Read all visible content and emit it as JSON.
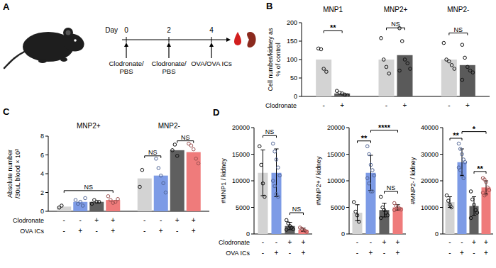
{
  "diagram": {
    "panel": "A",
    "day_label": "Day",
    "days": [
      0,
      2,
      4
    ],
    "events": [
      {
        "day": 0,
        "label": [
          "Clodronate/",
          "PBS"
        ]
      },
      {
        "day": 2,
        "label": [
          "Clodronate/",
          "PBS"
        ]
      },
      {
        "day": 4,
        "label": [
          "OVA/OVA ICs"
        ]
      }
    ]
  },
  "chart_data": [
    {
      "type": "bar",
      "panel": "B",
      "y_label": [
        "Cell number/kidney as",
        "% of control"
      ],
      "categories": [
        "MNP1",
        "MNP2+",
        "MNP2-"
      ],
      "ylim": [
        0,
        200
      ],
      "yticks": [
        0,
        50,
        100,
        150,
        200
      ],
      "series": [
        {
          "color": "#d3d3d3",
          "values": [
            100,
            100,
            100
          ],
          "points": [
            [
              130,
              128,
              75,
              67
            ],
            [
              158,
              100,
              80,
              62
            ],
            [
              145,
              100,
              95,
              85,
              75
            ]
          ]
        },
        {
          "color": "#5a5a5a",
          "values": [
            8,
            112,
            85
          ],
          "points": [
            [
              15,
              10,
              8,
              5,
              3
            ],
            [
              185,
              150,
              100,
              90,
              75,
              70
            ],
            [
              140,
              105,
              80,
              70,
              65,
              45
            ]
          ]
        }
      ],
      "rows": [
        {
          "label": "Clodronate",
          "values": [
            "-",
            "+",
            "-",
            "+",
            "-",
            "+"
          ]
        }
      ],
      "annotations": [
        {
          "text": "**",
          "bars": [
            0,
            1
          ],
          "y": 178
        },
        {
          "text": "NS",
          "bars": [
            2,
            3
          ],
          "y": 186
        },
        {
          "text": "NS",
          "bars": [
            4,
            5
          ],
          "y": 172
        }
      ]
    },
    {
      "type": "bar",
      "panel": "C",
      "y_label": [
        "Absolute number",
        "/30uL blood × 10³"
      ],
      "categories": [
        "MNP2+",
        "MNP2-"
      ],
      "ylim": [
        0,
        8
      ],
      "yticks": [
        0,
        2,
        4,
        6,
        8
      ],
      "series": [
        {
          "color": "#d3d3d3",
          "values": [
            0.5,
            3.5
          ],
          "points": [
            [
              0.4,
              0.6
            ],
            [
              2.6,
              4.4
            ]
          ]
        },
        {
          "color": "#7d9be6",
          "values": [
            1.0,
            3.8
          ],
          "points": [
            [
              1.2,
              0.8,
              1.0,
              0.6,
              1.4
            ],
            [
              5.6,
              4.6,
              3.8,
              3.0,
              2.0
            ]
          ]
        },
        {
          "color": "#5f5f5f",
          "values": [
            1.0,
            6.5
          ],
          "points": [
            [
              0.8,
              1.2,
              1.0,
              1.0
            ],
            [
              6.5,
              7.1,
              5.9
            ]
          ]
        },
        {
          "color": "#ef7b7b",
          "values": [
            1.2,
            6.3
          ],
          "points": [
            [
              1.6,
              1.2,
              0.9,
              1.0,
              1.3
            ],
            [
              7.2,
              7.0,
              6.6,
              5.6,
              5.1
            ]
          ]
        }
      ],
      "rows": [
        {
          "label": "Clodronate",
          "values": [
            "-",
            "-",
            "+",
            "+",
            "-",
            "-",
            "+",
            "+"
          ]
        },
        {
          "label": "OVA ICs",
          "values": [
            "-",
            "+",
            "-",
            "+",
            "-",
            "+",
            "-",
            "+"
          ]
        }
      ],
      "annotations": [
        {
          "text": "NS",
          "bars": [
            0,
            3
          ],
          "y": 2.2
        },
        {
          "text": "NS",
          "bars": [
            4,
            5
          ],
          "y": 5.9
        },
        {
          "text": "NS",
          "bars": [
            6,
            7
          ],
          "y": 7.5
        }
      ]
    },
    {
      "type": "bar",
      "panel": "D",
      "y_label": "#MNP1 / kidney",
      "categories": [
        null
      ],
      "ylim": [
        0,
        20000
      ],
      "yticks": [
        0,
        5000,
        10000,
        15000,
        20000
      ],
      "series": [
        {
          "color": "#d3d3d3",
          "values": [
            11500
          ],
          "errors": [
            4300
          ],
          "points": [
            [
              16500,
              13000,
              9500,
              7000
            ]
          ]
        },
        {
          "color": "#7d9be6",
          "values": [
            11500
          ],
          "errors": [
            4500
          ],
          "points": [
            [
              17000,
              15500,
              14000,
              12500,
              11000,
              10000,
              9000,
              7500,
              7000
            ]
          ]
        },
        {
          "color": "#5f5f5f",
          "values": [
            1500
          ],
          "errors": [
            700
          ],
          "points": [
            [
              2600,
              2000,
              1500,
              1200,
              900,
              800
            ]
          ]
        },
        {
          "color": "#ef7b7b",
          "values": [
            800
          ],
          "errors": [
            300
          ],
          "points": [
            [
              1200,
              1000,
              800,
              600,
              400
            ]
          ]
        }
      ],
      "rows": [
        {
          "label": "Clodronate",
          "values": [
            "-",
            "-",
            "+",
            "+"
          ]
        },
        {
          "label": "OVA ICs",
          "values": [
            "-",
            "+",
            "-",
            "+"
          ]
        }
      ],
      "annotations": [
        {
          "text": "NS",
          "bars": [
            0,
            1
          ],
          "y": 18500
        },
        {
          "text": "NS",
          "bars": [
            2,
            3
          ],
          "y": 4000
        }
      ]
    },
    {
      "type": "bar",
      "y_label": "#MNP2+ / kidney",
      "categories": [
        null
      ],
      "ylim": [
        0,
        20000
      ],
      "yticks": [
        0,
        5000,
        10000,
        15000,
        20000
      ],
      "series": [
        {
          "color": "#d3d3d3",
          "values": [
            4000
          ],
          "errors": [
            1500
          ],
          "points": [
            [
              6000,
              4200,
              3500,
              2300
            ]
          ]
        },
        {
          "color": "#7d9be6",
          "values": [
            11500
          ],
          "errors": [
            3300
          ],
          "points": [
            [
              16500,
              15000,
              13000,
              12000,
              11000,
              10500,
              9500,
              8000,
              8000
            ]
          ]
        },
        {
          "color": "#5f5f5f",
          "values": [
            4500
          ],
          "errors": [
            1300
          ],
          "points": [
            [
              7000,
              5000,
              4500,
              4000,
              3500,
              3000
            ]
          ]
        },
        {
          "color": "#ef7b7b",
          "values": [
            5000
          ],
          "errors": [
            500
          ],
          "points": [
            [
              5800,
              5300,
              5000,
              4800,
              4600,
              4500
            ]
          ]
        }
      ],
      "rows": [
        {
          "values": [
            "-",
            "-",
            "+",
            "+"
          ]
        },
        {
          "values": [
            "-",
            "+",
            "-",
            "+"
          ]
        }
      ],
      "annotations": [
        {
          "text": "**",
          "bars": [
            0,
            1
          ],
          "y": 17500
        },
        {
          "text": "****",
          "bars": [
            1,
            3
          ],
          "y": 19500
        },
        {
          "text": "NS",
          "bars": [
            2,
            3
          ],
          "y": 8000
        }
      ]
    },
    {
      "type": "bar",
      "y_label": "#MNP2- / kidney",
      "categories": [
        null
      ],
      "ylim": [
        0,
        40000
      ],
      "yticks": [
        0,
        10000,
        20000,
        30000,
        40000
      ],
      "series": [
        {
          "color": "#d3d3d3",
          "values": [
            12000
          ],
          "errors": [
            2000
          ],
          "points": [
            [
              14500,
              12500,
              11000,
              10000
            ]
          ]
        },
        {
          "color": "#7d9be6",
          "values": [
            27000
          ],
          "errors": [
            5000
          ],
          "points": [
            [
              34000,
              32000,
              30000,
              28000,
              27000,
              25000,
              24000,
              22000,
              21000
            ]
          ]
        },
        {
          "color": "#5f5f5f",
          "values": [
            10500
          ],
          "errors": [
            3500
          ],
          "points": [
            [
              16000,
              13000,
              11000,
              9000,
              8000,
              6000
            ]
          ]
        },
        {
          "color": "#ef7b7b",
          "values": [
            17500
          ],
          "errors": [
            2500
          ],
          "points": [
            [
              21000,
              20500,
              19500,
              17500,
              16500,
              15500,
              14500,
              15000
            ]
          ]
        }
      ],
      "rows": [
        {
          "values": [
            "-",
            "-",
            "+",
            "+"
          ]
        },
        {
          "values": [
            "-",
            "+",
            "-",
            "+"
          ]
        }
      ],
      "annotations": [
        {
          "text": "**",
          "bars": [
            0,
            1
          ],
          "y": 36000
        },
        {
          "text": "*",
          "bars": [
            1,
            3
          ],
          "y": 38500
        },
        {
          "text": "**",
          "bars": [
            2,
            3
          ],
          "y": 23500
        }
      ]
    }
  ]
}
